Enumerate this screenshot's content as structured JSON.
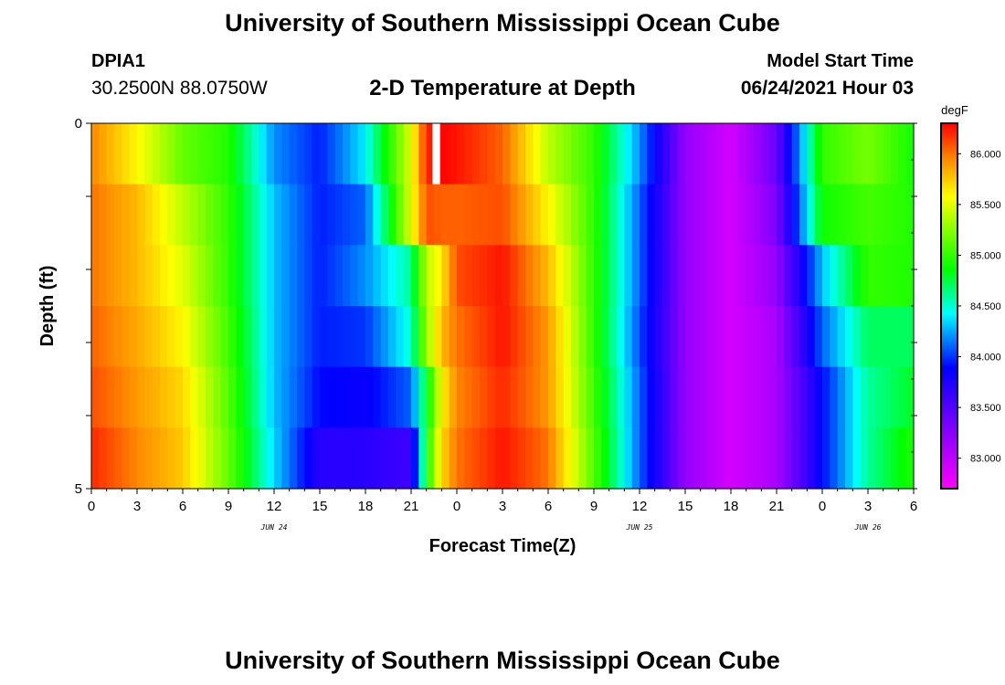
{
  "header": {
    "title": "University of Southern Mississippi Ocean Cube",
    "station": "DPIA1",
    "coordinates": "30.2500N  88.0750W",
    "subtitle": "2-D Temperature at Depth",
    "start_label": "Model Start Time",
    "start_value": "06/24/2021 Hour 03"
  },
  "footer": {
    "title": "University of Southern Mississippi Ocean Cube"
  },
  "chart_data": {
    "type": "heatmap",
    "title": "2-D Temperature at Depth",
    "xlabel": "Forecast Time(Z)",
    "ylabel": "Depth (ft)",
    "x_ticks": [
      "0",
      "3",
      "6",
      "9",
      "12",
      "15",
      "18",
      "21",
      "0",
      "3",
      "6",
      "9",
      "12",
      "15",
      "18",
      "21",
      "0",
      "3",
      "6"
    ],
    "date_labels": [
      {
        "label": "JUN 24",
        "hour": 12
      },
      {
        "label": "JUN 25",
        "hour": 36
      },
      {
        "label": "JUN 26",
        "hour": 51
      }
    ],
    "x_range_hours": [
      0,
      54
    ],
    "y_ticks": [
      "0",
      "5"
    ],
    "ylim": [
      0,
      5
    ],
    "depth_levels_ft": [
      0.25,
      1.25,
      2.25,
      3.25,
      4.25,
      4.75
    ],
    "time_hours": [
      0,
      3,
      6,
      9,
      12,
      15,
      18,
      21,
      22,
      23,
      24,
      27,
      30,
      33,
      36,
      39,
      42,
      45,
      48,
      51,
      54
    ],
    "temperature_degF": [
      [
        85.95,
        85.6,
        85.15,
        84.95,
        84.2,
        83.95,
        84.4,
        85.5,
        86.2,
        86.3,
        86.25,
        86.05,
        85.4,
        85.0,
        84.2,
        83.2,
        82.9,
        83.4,
        85.0,
        85.2,
        84.9
      ],
      [
        86.0,
        85.8,
        85.4,
        85.0,
        84.3,
        83.95,
        84.1,
        85.5,
        86.1,
        86.05,
        86.05,
        86.1,
        85.6,
        85.0,
        84.1,
        83.2,
        82.9,
        83.3,
        84.9,
        85.05,
        84.95
      ],
      [
        86.0,
        85.8,
        85.5,
        85.0,
        84.3,
        83.95,
        84.2,
        84.6,
        85.4,
        85.65,
        86.1,
        86.25,
        85.8,
        85.0,
        84.1,
        83.2,
        82.9,
        83.2,
        84.3,
        85.0,
        84.95
      ],
      [
        86.05,
        85.85,
        85.6,
        85.05,
        84.3,
        83.95,
        84.0,
        84.5,
        85.3,
        85.8,
        86.0,
        86.25,
        85.9,
        85.0,
        84.05,
        83.2,
        82.9,
        83.1,
        84.1,
        84.7,
        84.7
      ],
      [
        86.1,
        85.9,
        85.7,
        85.1,
        84.3,
        83.9,
        83.85,
        84.1,
        84.8,
        85.6,
        85.95,
        86.2,
        85.9,
        85.05,
        84.1,
        83.2,
        82.9,
        83.1,
        83.9,
        84.6,
        84.8
      ],
      [
        86.2,
        85.95,
        85.75,
        85.15,
        84.35,
        83.7,
        83.7,
        83.6,
        84.9,
        85.7,
        86.0,
        86.25,
        86.0,
        85.1,
        84.1,
        83.2,
        82.9,
        83.1,
        83.9,
        84.6,
        84.95
      ]
    ],
    "missing_cells": [
      {
        "depth_index": 0,
        "time_start": 22.4,
        "time_end": 22.9
      }
    ],
    "colorbar": {
      "label": "degF",
      "range": [
        82.7,
        86.3
      ],
      "ticks": [
        "83.000",
        "83.500",
        "84.000",
        "84.500",
        "85.000",
        "85.500",
        "86.000"
      ]
    }
  }
}
